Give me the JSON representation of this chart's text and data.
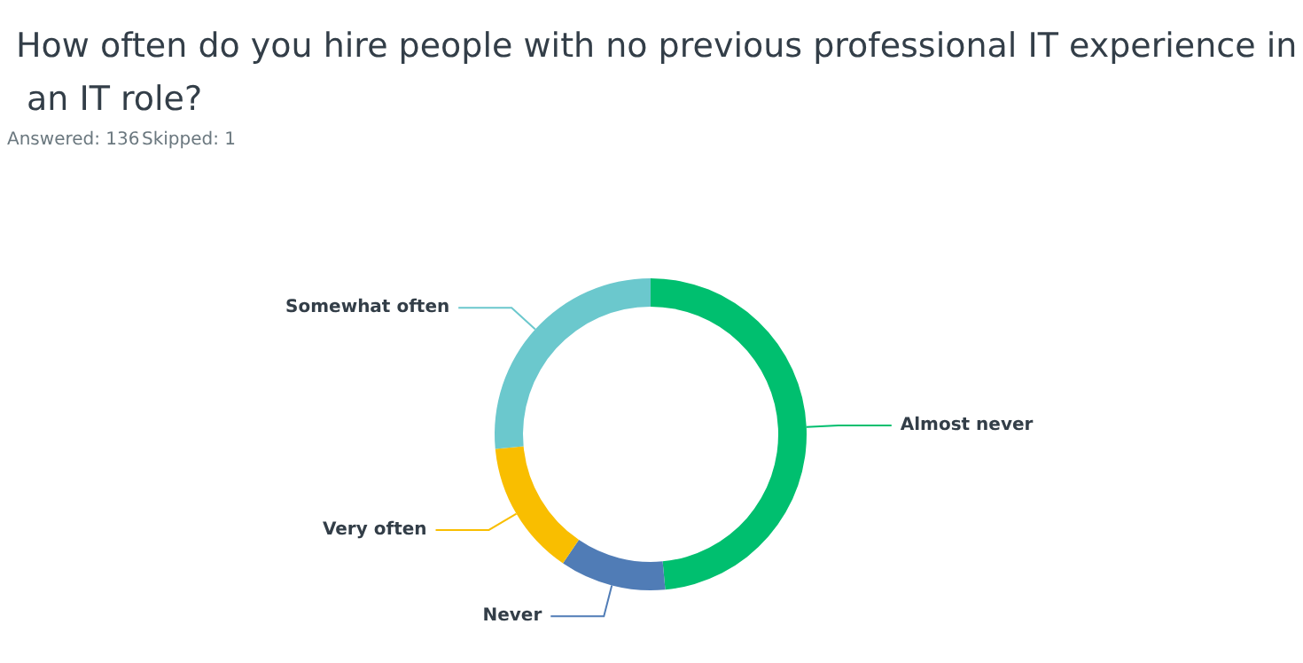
{
  "chart_data": {
    "type": "donut",
    "title": "How often do you hire people with no previous professional IT experience in an IT role?",
    "annotations": [
      "Answered: 136",
      "Skipped: 1"
    ],
    "categories": [
      "Almost never",
      "Never",
      "Very often",
      "Somewhat often"
    ],
    "values": [
      48.5,
      11,
      14,
      26.5
    ],
    "colors": [
      "#00bf6f",
      "#507cb6",
      "#f9be00",
      "#6bc8cd"
    ],
    "legend": false
  }
}
